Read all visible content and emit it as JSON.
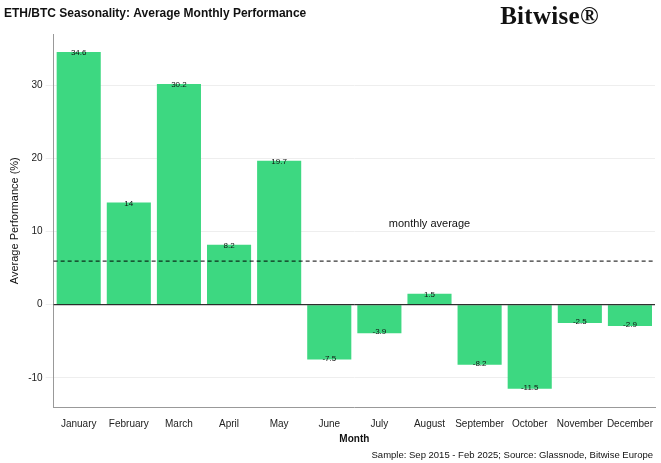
{
  "chart_data": {
    "type": "bar",
    "title": "ETH/BTC Seasonality: Average Monthly Performance",
    "logo": "Bitwise®",
    "source": "Sample: Sep 2015 - Feb 2025; Source: Glassnode, Bitwise Europe",
    "x_label": "Month",
    "y_label": "Average Performance (%)",
    "categories": [
      "January",
      "February",
      "March",
      "April",
      "May",
      "June",
      "July",
      "August",
      "September",
      "October",
      "November",
      "December"
    ],
    "values": [
      34.6,
      14,
      30.2,
      8.2,
      19.7,
      -7.5,
      -3.9,
      1.5,
      -8.2,
      -11.5,
      -2.5,
      -2.9
    ],
    "color": "#3dd881",
    "ylim": [
      -14,
      37
    ],
    "yticks": [
      -10,
      0,
      10,
      20,
      30
    ],
    "grid": true,
    "data_labels": true,
    "annotations": [
      {
        "text": "monthly average",
        "value": 5.97,
        "line_style": "dashed"
      }
    ]
  }
}
